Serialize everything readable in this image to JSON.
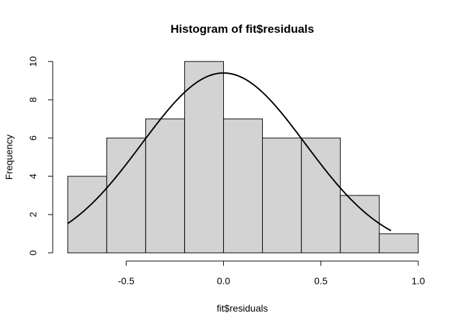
{
  "chart_data": {
    "type": "bar",
    "subtype": "histogram",
    "title": "Histogram of fit$residuals",
    "xlabel": "fit$residuals",
    "ylabel": "Frequency",
    "bins": [
      {
        "start": -0.8,
        "end": -0.6,
        "count": 4
      },
      {
        "start": -0.6,
        "end": -0.4,
        "count": 6
      },
      {
        "start": -0.4,
        "end": -0.2,
        "count": 7
      },
      {
        "start": -0.2,
        "end": 0.0,
        "count": 10
      },
      {
        "start": 0.0,
        "end": 0.2,
        "count": 7
      },
      {
        "start": 0.2,
        "end": 0.4,
        "count": 6
      },
      {
        "start": 0.4,
        "end": 0.6,
        "count": 6
      },
      {
        "start": 0.6,
        "end": 0.8,
        "count": 3
      },
      {
        "start": 0.8,
        "end": 1.0,
        "count": 1
      }
    ],
    "overlay_curve": {
      "type": "normal-density",
      "mean": 0.0,
      "sd": 0.42,
      "peak": 9.4,
      "x_range": [
        -0.8,
        0.86
      ]
    },
    "xticks": [
      -0.5,
      0.0,
      0.5,
      1.0
    ],
    "xtick_labels": [
      "-0.5",
      "0.0",
      "0.5",
      "1.0"
    ],
    "yticks": [
      0,
      2,
      4,
      6,
      8,
      10
    ],
    "ytick_labels": [
      "0",
      "2",
      "4",
      "6",
      "8",
      "10"
    ],
    "xlim": [
      -0.8,
      1.0
    ],
    "ylim": [
      0,
      10
    ],
    "grid": false,
    "colors": {
      "bar_fill": "#d3d3d3",
      "bar_stroke": "#000000",
      "curve": "#000000",
      "background": "#ffffff"
    }
  }
}
